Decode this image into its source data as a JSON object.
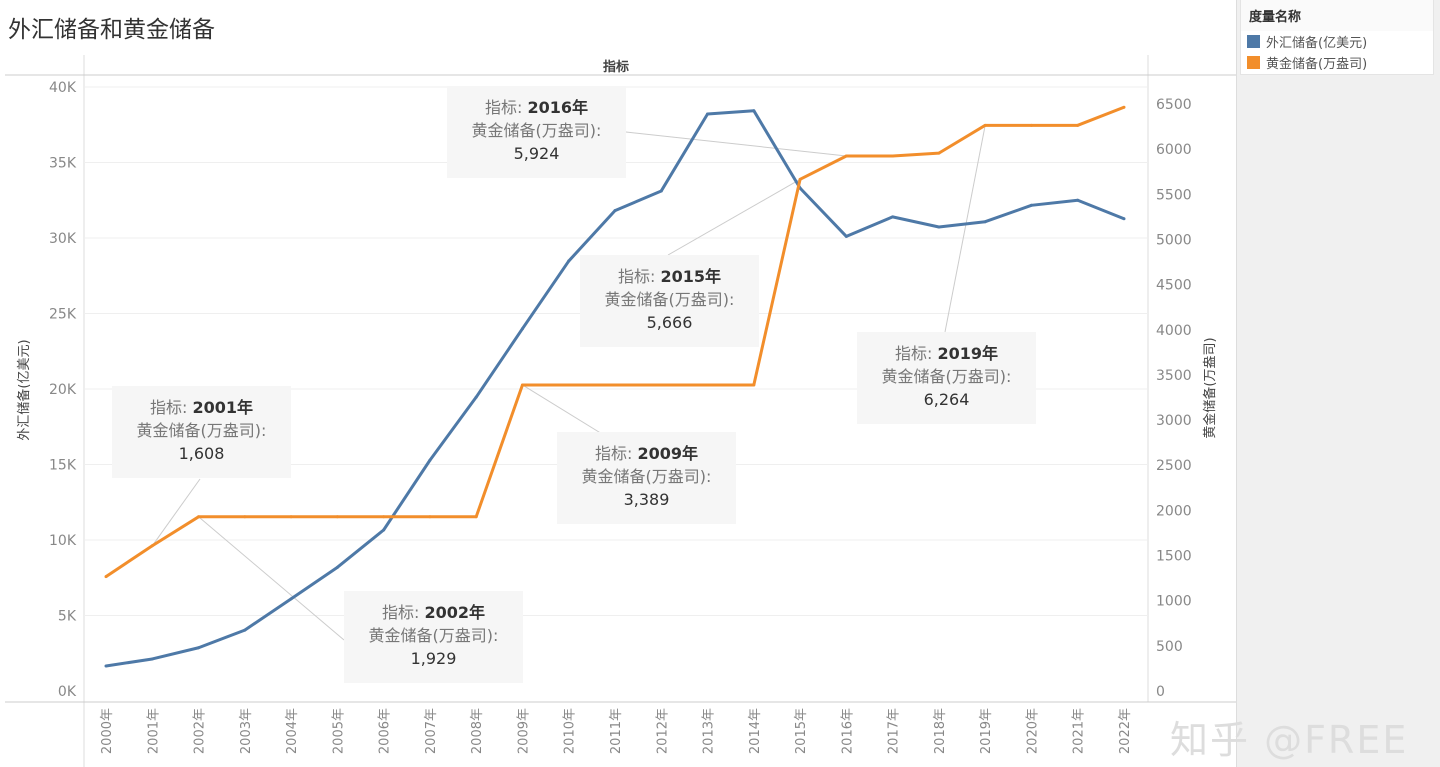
{
  "chart_data": {
    "type": "line",
    "title": "外汇储备和黄金储备",
    "header": "指标",
    "x": [
      "2000年",
      "2001年",
      "2002年",
      "2003年",
      "2004年",
      "2005年",
      "2006年",
      "2007年",
      "2008年",
      "2009年",
      "2010年",
      "2011年",
      "2012年",
      "2013年",
      "2014年",
      "2015年",
      "2016年",
      "2017年",
      "2018年",
      "2019年",
      "2020年",
      "2021年",
      "2022年"
    ],
    "series": [
      {
        "name": "外汇储备(亿美元)",
        "axis": "left",
        "color": "#4e79a7",
        "values": [
          1656,
          2122,
          2864,
          4033,
          6099,
          8189,
          10663,
          15282,
          19460,
          23992,
          28473,
          31811,
          33116,
          38213,
          38430,
          33304,
          30105,
          31399,
          30727,
          31079,
          32165,
          32502,
          31277
        ]
      },
      {
        "name": "黄金储备(万盎司)",
        "axis": "right",
        "color": "#f28e2b",
        "values": [
          1267,
          1608,
          1929,
          1929,
          1929,
          1929,
          1929,
          1929,
          1929,
          3389,
          3389,
          3389,
          3389,
          3389,
          3389,
          5666,
          5924,
          5924,
          5956,
          6264,
          6264,
          6264,
          6464
        ]
      }
    ],
    "ylabel_left": "外汇储备(亿美元)",
    "ylim_left": [
      0,
      40000
    ],
    "yticks_left": [
      "0K",
      "5K",
      "10K",
      "15K",
      "20K",
      "25K",
      "30K",
      "35K",
      "40K"
    ],
    "ylabel_right": "黄金储备(万盎司)",
    "ylim_right": [
      0,
      6500
    ],
    "yticks_right": [
      "0",
      "500",
      "1000",
      "1500",
      "2000",
      "2500",
      "3000",
      "3500",
      "4000",
      "4500",
      "5000",
      "5500",
      "6000",
      "6500"
    ],
    "grid": true,
    "legend": {
      "title": "度量名称",
      "position": "right"
    },
    "annotations": [
      {
        "key": "指标:",
        "year": "2016年",
        "measure": "黄金储备(万盎司):",
        "value": "5,924",
        "xi": 16
      },
      {
        "key": "指标:",
        "year": "2015年",
        "measure": "黄金储备(万盎司):",
        "value": "5,666",
        "xi": 15
      },
      {
        "key": "指标:",
        "year": "2019年",
        "measure": "黄金储备(万盎司):",
        "value": "6,264",
        "xi": 19
      },
      {
        "key": "指标:",
        "year": "2009年",
        "measure": "黄金储备(万盎司):",
        "value": "3,389",
        "xi": 9
      },
      {
        "key": "指标:",
        "year": "2001年",
        "measure": "黄金储备(万盎司):",
        "value": "1,608",
        "xi": 1
      },
      {
        "key": "指标:",
        "year": "2002年",
        "measure": "黄金储备(万盎司):",
        "value": "1,929",
        "xi": 2
      }
    ]
  },
  "watermark": "知乎 @FREE"
}
